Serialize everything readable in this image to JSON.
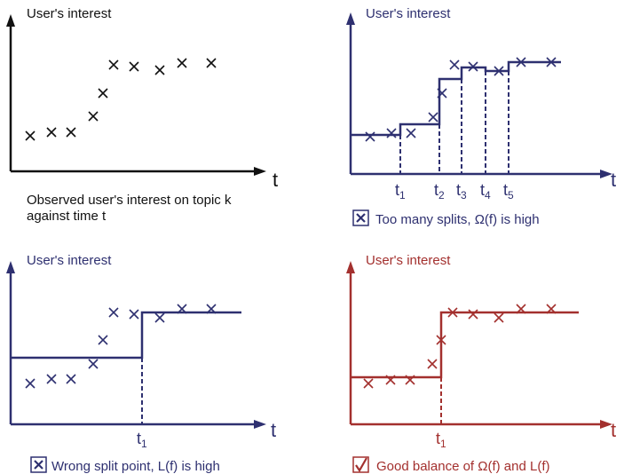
{
  "colors": {
    "black": "#111111",
    "navy": "#2e3070",
    "red": "#a3302e"
  },
  "panels": [
    {
      "ylabel": "User's interest",
      "xlabel": "t",
      "caption_line1": "Observed user's interest on topic k",
      "caption_line2": "against time t"
    },
    {
      "ylabel": "User's interest",
      "xlabel": "t",
      "split_labels": [
        "t",
        "t",
        "t",
        "t",
        "t"
      ],
      "split_subs": [
        "1",
        "2",
        "3",
        "4",
        "5"
      ],
      "caption": "Too many splits, Ω(f) is high",
      "caption_icon": "x-box-icon"
    },
    {
      "ylabel": "User's interest",
      "xlabel": "t",
      "split_labels": [
        "t"
      ],
      "split_subs": [
        "1"
      ],
      "caption": "Wrong split point, L(f) is high",
      "caption_icon": "x-box-icon"
    },
    {
      "ylabel": "User's interest",
      "xlabel": "t",
      "split_labels": [
        "t"
      ],
      "split_subs": [
        "1"
      ],
      "caption": "Good balance of Ω(f) and L(f)",
      "caption_icon": "checkmark-box-icon"
    }
  ]
}
